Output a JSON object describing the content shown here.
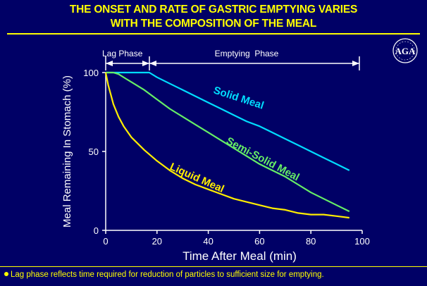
{
  "title_line1": "THE ONSET AND RATE OF GASTRIC EMPTYING VARIES",
  "title_line2": "WITH THE COMPOSITION OF THE MEAL",
  "logo_text": "AGA",
  "phase_lag_label": "Lag Phase",
  "phase_empty_label": "Emptying  Phase",
  "footnote": "Lag phase reflects time required for reduction of particles to sufficient size for emptying.",
  "colors": {
    "background": "#000066",
    "title": "#ffff00",
    "solid": "#00ddff",
    "semi_solid": "#66ee66",
    "liquid": "#ffee00",
    "axis": "#ffffff"
  },
  "chart_data": {
    "type": "line",
    "xlabel": "Time After Meal (min)",
    "ylabel": "Meal Remaining In Stomach (%)",
    "xlim": [
      0,
      100
    ],
    "ylim": [
      0,
      100
    ],
    "xticks": [
      0,
      20,
      40,
      60,
      80,
      100
    ],
    "yticks": [
      0,
      50,
      100
    ],
    "grid": false,
    "lag_phase_end": 17,
    "series": [
      {
        "name": "Solid Meal",
        "color": "#00ddff",
        "x": [
          0,
          5,
          10,
          15,
          17,
          20,
          25,
          30,
          35,
          40,
          45,
          50,
          55,
          60,
          65,
          70,
          75,
          80,
          85,
          90,
          95
        ],
        "y": [
          100,
          100,
          100,
          100,
          100,
          97,
          93,
          89,
          85,
          81,
          77,
          73,
          69,
          66,
          62,
          58,
          54,
          50,
          46,
          42,
          38
        ]
      },
      {
        "name": "Semi-Solid Meal",
        "color": "#66ee66",
        "x": [
          0,
          3,
          5,
          8,
          10,
          15,
          20,
          25,
          30,
          35,
          40,
          45,
          50,
          55,
          60,
          65,
          70,
          75,
          80,
          85,
          90,
          95
        ],
        "y": [
          100,
          100,
          99,
          96,
          94,
          89,
          83,
          77,
          72,
          67,
          62,
          57,
          52,
          47,
          42,
          38,
          34,
          29,
          24,
          20,
          16,
          12
        ]
      },
      {
        "name": "Liquid Meal",
        "color": "#ffee00",
        "x": [
          0,
          1,
          2,
          3,
          5,
          7,
          10,
          15,
          20,
          25,
          30,
          35,
          40,
          45,
          50,
          55,
          60,
          65,
          70,
          75,
          80,
          85,
          90,
          95
        ],
        "y": [
          100,
          92,
          86,
          80,
          72,
          66,
          59,
          51,
          44,
          38,
          33,
          29,
          26,
          23,
          20,
          18,
          16,
          14,
          13,
          11,
          10,
          10,
          9,
          8
        ]
      }
    ]
  }
}
